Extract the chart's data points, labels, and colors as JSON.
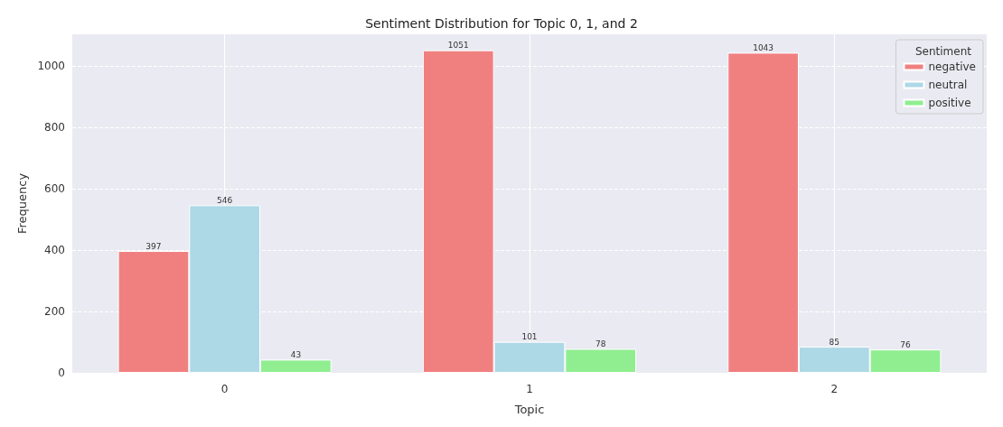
{
  "chart_data": {
    "type": "bar",
    "title": "Sentiment Distribution for Topic 0, 1, and 2",
    "xlabel": "Topic",
    "ylabel": "Frequency",
    "legend_title": "Sentiment",
    "categories": [
      "0",
      "1",
      "2"
    ],
    "series": [
      {
        "name": "negative",
        "color": "#f08080",
        "values": [
          397,
          1051,
          1043
        ]
      },
      {
        "name": "neutral",
        "color": "#add8e6",
        "values": [
          546,
          101,
          85
        ]
      },
      {
        "name": "positive",
        "color": "#90ee90",
        "values": [
          43,
          78,
          76
        ]
      }
    ],
    "ylim": [
      0,
      1103
    ],
    "yticks": [
      0,
      200,
      400,
      600,
      800,
      1000
    ],
    "grid": true,
    "legend": "top right",
    "data_labels": true
  }
}
